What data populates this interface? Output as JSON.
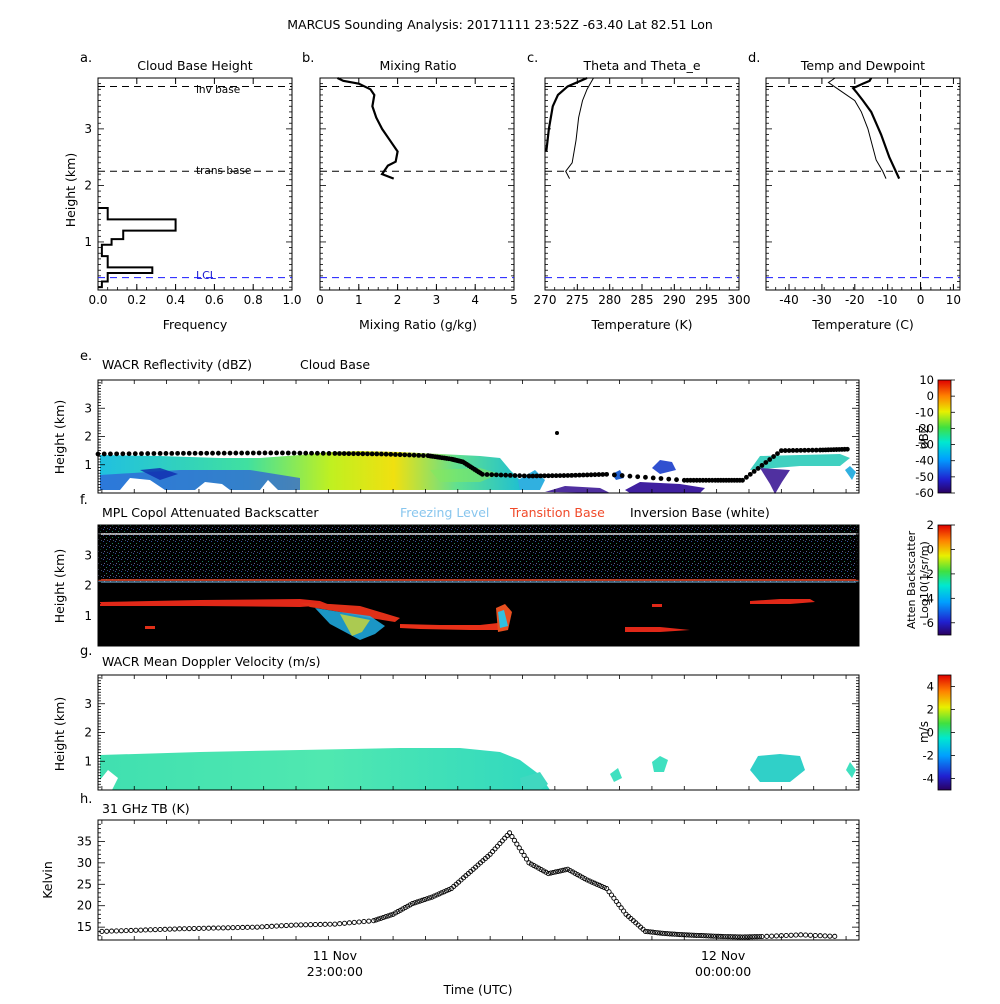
{
  "title": "MARCUS Sounding Analysis: 20171111 23:52Z   -63.40 Lat   82.51 Lon",
  "profiles": [
    {
      "letter": "a.",
      "title": "Cloud Base Height",
      "xlabel": "Frequency",
      "ylabel": "Height (km)",
      "xticks": [
        "0.0",
        "0.2",
        "0.4",
        "0.6",
        "0.8",
        "1.0"
      ],
      "yticks": [
        "1",
        "2",
        "3"
      ],
      "annotations": [
        "inv base",
        "trans base",
        "LCL"
      ]
    },
    {
      "letter": "b.",
      "title": "Mixing Ratio",
      "xlabel": "Mixing Ratio (g/kg)",
      "xticks": [
        "0",
        "1",
        "2",
        "3",
        "4",
        "5"
      ]
    },
    {
      "letter": "c.",
      "title": "Theta and Theta_e",
      "xlabel": "Temperature (K)",
      "xticks": [
        "270",
        "275",
        "280",
        "285",
        "290",
        "295",
        "300"
      ]
    },
    {
      "letter": "d.",
      "title": "Temp and Dewpoint",
      "xlabel": "Temperature (C)",
      "xticks": [
        "-40",
        "-30",
        "-20",
        "-10",
        "0",
        "10"
      ]
    }
  ],
  "panels": {
    "e": {
      "letter": "e.",
      "title": "WACR Reflectivity (dBZ)",
      "legend": "Cloud Base",
      "ylabel": "Height (km)",
      "yticks": [
        "1",
        "2",
        "3"
      ],
      "colorbar_label": "dBZ",
      "colorbar_ticks": [
        "10",
        "0",
        "-10",
        "-20",
        "-30",
        "-40",
        "-50",
        "-60"
      ]
    },
    "f": {
      "letter": "f.",
      "title": "MPL Copol Attenuated Backscatter",
      "legend_freezing": "Freezing Level",
      "legend_transition": "Transition Base",
      "legend_inversion": "Inversion Base (white)",
      "ylabel": "Height (km)",
      "yticks": [
        "1",
        "2",
        "3"
      ],
      "colorbar_label_1": "Atten Backscatter",
      "colorbar_label_2": "Log10(1/sr/m)",
      "colorbar_ticks": [
        "2",
        "0",
        "-2",
        "-4",
        "-6"
      ]
    },
    "g": {
      "letter": "g.",
      "title": "WACR Mean Doppler Velocity (m/s)",
      "ylabel": "Height (km)",
      "yticks": [
        "1",
        "2",
        "3"
      ],
      "colorbar_label": "m/s",
      "colorbar_ticks": [
        "4",
        "2",
        "0",
        "-2",
        "-4"
      ]
    },
    "h": {
      "letter": "h.",
      "title": "31 GHz TB (K)",
      "ylabel": "Kelvin",
      "yticks": [
        "15",
        "20",
        "25",
        "30",
        "35"
      ]
    }
  },
  "time_axis": {
    "label": "Time (UTC)",
    "ticks": [
      {
        "date": "11 Nov",
        "time": "23:00:00"
      },
      {
        "date": "12 Nov",
        "time": "00:00:00"
      },
      {
        "date": "12 Nov",
        "time": "01:00:00"
      }
    ]
  },
  "colors": {
    "inversion": "#ffffff",
    "transition": "#f04a2a",
    "freezing": "#88c6ee",
    "lcl": "#1a1aff",
    "lcl_text": "#2020d0"
  },
  "chart_data": [
    {
      "type": "bar",
      "panel": "a",
      "orientation": "horizontal",
      "xlim": [
        0,
        1.0
      ],
      "ylim": [
        0.15,
        3.9
      ],
      "bins": [
        {
          "y0": 0.2,
          "y1": 0.3,
          "value": 0.02
        },
        {
          "y0": 0.3,
          "y1": 0.45,
          "value": 0.05
        },
        {
          "y0": 0.45,
          "y1": 0.55,
          "value": 0.28
        },
        {
          "y0": 0.55,
          "y1": 0.75,
          "value": 0.05
        },
        {
          "y0": 0.75,
          "y1": 0.95,
          "value": 0.02
        },
        {
          "y0": 0.95,
          "y1": 1.05,
          "value": 0.07
        },
        {
          "y0": 1.05,
          "y1": 1.2,
          "value": 0.13
        },
        {
          "y0": 1.2,
          "y1": 1.4,
          "value": 0.4
        },
        {
          "y0": 1.4,
          "y1": 1.6,
          "value": 0.05
        }
      ],
      "inversion_base_km": 3.75,
      "transition_base_km": 2.25,
      "lcl_km": 0.37
    },
    {
      "type": "line",
      "panel": "b",
      "xlim": [
        0,
        5
      ],
      "ylim": [
        0.15,
        3.9
      ],
      "series": [
        {
          "x": [
            1.9,
            1.6,
            1.75,
            1.95,
            2.0,
            1.8,
            1.6,
            1.45,
            1.35,
            1.4,
            1.3,
            1.0,
            0.6,
            0.45
          ],
          "y": [
            2.12,
            2.2,
            2.35,
            2.42,
            2.6,
            2.8,
            3.0,
            3.2,
            3.4,
            3.6,
            3.7,
            3.8,
            3.85,
            3.9
          ]
        }
      ],
      "inversion_base_km": 3.75,
      "transition_base_km": 2.25,
      "lcl_km": 0.37
    },
    {
      "type": "line",
      "panel": "c",
      "xlim": [
        270,
        300
      ],
      "ylim": [
        0.15,
        3.9
      ],
      "series": [
        {
          "x": [
            270.2,
            270.6,
            271.2,
            272.0,
            273.5,
            276.5
          ],
          "y": [
            2.6,
            3.0,
            3.4,
            3.6,
            3.75,
            3.9
          ]
        },
        {
          "x": [
            273.8,
            273.2,
            274.2,
            274.8,
            275.2,
            275.8,
            276.5,
            277.0,
            277.5
          ],
          "y": [
            2.12,
            2.25,
            2.4,
            2.8,
            3.2,
            3.5,
            3.7,
            3.8,
            3.9
          ]
        }
      ],
      "inversion_base_km": 3.75,
      "transition_base_km": 2.25,
      "lcl_km": 0.37
    },
    {
      "type": "line",
      "panel": "d",
      "xlim": [
        -47,
        12
      ],
      "ylim": [
        0.15,
        3.9
      ],
      "series": [
        {
          "x": [
            -6.5,
            -9.5,
            -12,
            -15,
            -17.5,
            -19.5,
            -20.5,
            -17.5,
            -15.5,
            -15.0
          ],
          "y": [
            2.12,
            2.5,
            2.9,
            3.3,
            3.5,
            3.65,
            3.72,
            3.8,
            3.85,
            3.9
          ]
        },
        {
          "x": [
            -10.5,
            -11.5,
            -12.5,
            -13.5,
            -16,
            -18,
            -20,
            -25,
            -28,
            -26
          ],
          "y": [
            2.12,
            2.25,
            2.35,
            2.45,
            3.0,
            3.3,
            3.5,
            3.7,
            3.82,
            3.9
          ]
        }
      ],
      "freezing_level_c": 0,
      "inversion_base_km": 3.75,
      "transition_base_km": 2.25,
      "lcl_km": 0.37
    },
    {
      "type": "heatmap",
      "panel": "e",
      "xlim": [
        -0.61,
        1.35
      ],
      "ylim": [
        0,
        4
      ],
      "cloud_base": {
        "x": [
          -0.61,
          -0.45,
          -0.3,
          -0.15,
          0.0,
          0.12,
          0.24,
          0.3,
          0.33,
          0.38,
          0.5,
          0.6,
          0.7,
          0.9,
          0.98,
          1.05,
          1.15,
          1.25,
          1.32
        ],
        "y": [
          1.38,
          1.4,
          1.41,
          1.42,
          1.4,
          1.38,
          1.32,
          1.2,
          1.1,
          0.66,
          0.6,
          0.62,
          0.66,
          0.45,
          0.45,
          0.45,
          1.5,
          1.52,
          1.55
        ]
      },
      "clim": [
        -60,
        10
      ]
    },
    {
      "type": "heatmap",
      "panel": "f",
      "xlim": [
        -0.61,
        1.35
      ],
      "ylim": [
        0,
        4
      ],
      "inversion_base_km": 3.72,
      "transition_base_km": 2.22,
      "clim": [
        -7,
        2
      ]
    },
    {
      "type": "heatmap",
      "panel": "g",
      "xlim": [
        -0.61,
        1.35
      ],
      "ylim": [
        0,
        4
      ],
      "clim": [
        -5,
        5
      ]
    },
    {
      "type": "scatter",
      "panel": "h",
      "xlim": [
        -0.61,
        1.35
      ],
      "ylim": [
        12,
        40
      ],
      "x": [
        -0.6,
        -0.5,
        -0.4,
        -0.3,
        -0.2,
        -0.1,
        0.0,
        0.1,
        0.15,
        0.2,
        0.25,
        0.3,
        0.35,
        0.4,
        0.45,
        0.5,
        0.55,
        0.6,
        0.65,
        0.7,
        0.75,
        0.8,
        0.85,
        0.9,
        0.95,
        1.0,
        1.05,
        1.1,
        1.2,
        1.3
      ],
      "y": [
        14.0,
        14.3,
        14.6,
        14.8,
        15.0,
        15.5,
        15.7,
        16.5,
        18.0,
        20.5,
        22.0,
        24.0,
        28.0,
        32.0,
        37.0,
        30.0,
        27.5,
        28.5,
        26.0,
        24.0,
        18.0,
        14.0,
        13.5,
        13.2,
        13.0,
        12.8,
        12.7,
        12.8,
        13.2,
        12.8
      ]
    }
  ]
}
